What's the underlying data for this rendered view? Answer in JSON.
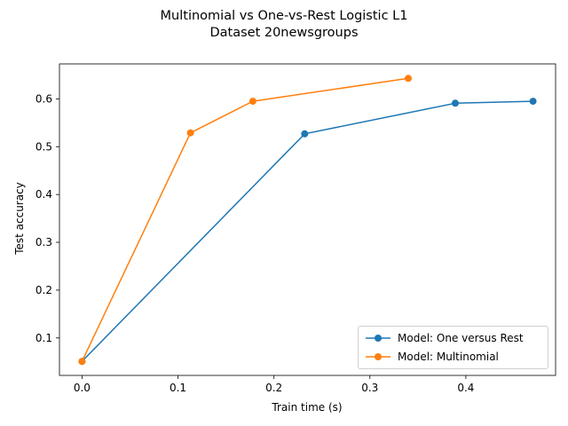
{
  "chart_data": {
    "type": "line",
    "title": "Multinomial vs One-vs-Rest Logistic L1",
    "subtitle": "Dataset 20newsgroups",
    "xlabel": "Train time (s)",
    "ylabel": "Test accuracy",
    "xlim": [
      -0.0235,
      0.4935
    ],
    "ylim": [
      0.0216,
      0.6732
    ],
    "xticks": [
      "0.0",
      "0.1",
      "0.2",
      "0.3",
      "0.4"
    ],
    "yticks": [
      "0.1",
      "0.2",
      "0.3",
      "0.4",
      "0.5",
      "0.6"
    ],
    "grid": false,
    "legend_position": "lower-right",
    "series": [
      {
        "name": "Model: One versus Rest",
        "color": "#1f77b4",
        "x": [
          0.0,
          0.232,
          0.389,
          0.47
        ],
        "y": [
          0.051,
          0.527,
          0.591,
          0.595
        ]
      },
      {
        "name": "Model: Multinomial",
        "color": "#ff7f0e",
        "x": [
          0.0,
          0.113,
          0.178,
          0.34
        ],
        "y": [
          0.051,
          0.529,
          0.595,
          0.643
        ]
      }
    ]
  }
}
